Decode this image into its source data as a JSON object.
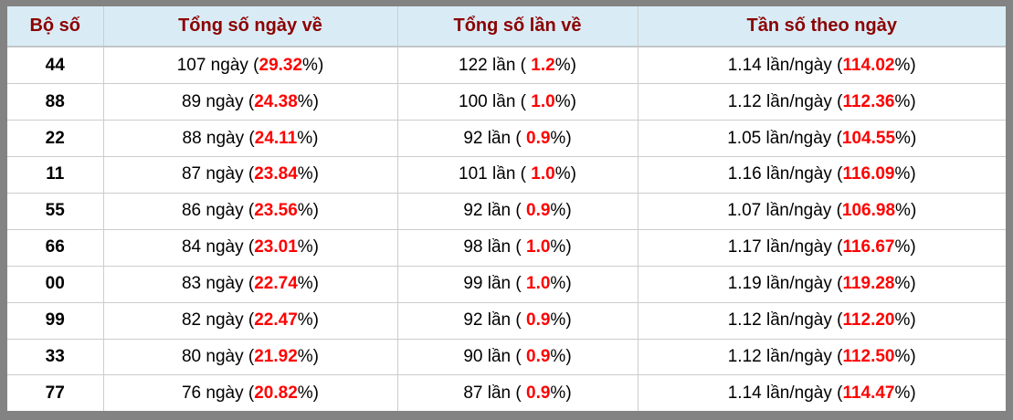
{
  "colors": {
    "frame_gray": "#838383",
    "header_bg": "#d9ecf6",
    "header_text": "#8b0000",
    "highlight_red": "#ff0000",
    "grid_line": "#cccccc"
  },
  "table": {
    "columns": [
      {
        "id": "pair",
        "label": "Bộ số"
      },
      {
        "id": "days",
        "label": "Tổng số ngày về"
      },
      {
        "id": "times",
        "label": "Tổng số lần về"
      },
      {
        "id": "freq",
        "label": "Tần số theo ngày"
      }
    ],
    "units": {
      "days": "ngày",
      "times": "lần",
      "freq": "lần/ngày"
    },
    "rows": [
      {
        "pair": "44",
        "days": "107",
        "days_pct": "29.32",
        "times": "122",
        "times_pct": "1.2",
        "freq": "1.14",
        "freq_pct": "114.02"
      },
      {
        "pair": "88",
        "days": "89",
        "days_pct": "24.38",
        "times": "100",
        "times_pct": "1.0",
        "freq": "1.12",
        "freq_pct": "112.36"
      },
      {
        "pair": "22",
        "days": "88",
        "days_pct": "24.11",
        "times": "92",
        "times_pct": "0.9",
        "freq": "1.05",
        "freq_pct": "104.55"
      },
      {
        "pair": "11",
        "days": "87",
        "days_pct": "23.84",
        "times": "101",
        "times_pct": "1.0",
        "freq": "1.16",
        "freq_pct": "116.09"
      },
      {
        "pair": "55",
        "days": "86",
        "days_pct": "23.56",
        "times": "92",
        "times_pct": "0.9",
        "freq": "1.07",
        "freq_pct": "106.98"
      },
      {
        "pair": "66",
        "days": "84",
        "days_pct": "23.01",
        "times": "98",
        "times_pct": "1.0",
        "freq": "1.17",
        "freq_pct": "116.67"
      },
      {
        "pair": "00",
        "days": "83",
        "days_pct": "22.74",
        "times": "99",
        "times_pct": "1.0",
        "freq": "1.19",
        "freq_pct": "119.28"
      },
      {
        "pair": "99",
        "days": "82",
        "days_pct": "22.47",
        "times": "92",
        "times_pct": "0.9",
        "freq": "1.12",
        "freq_pct": "112.20"
      },
      {
        "pair": "33",
        "days": "80",
        "days_pct": "21.92",
        "times": "90",
        "times_pct": "0.9",
        "freq": "1.12",
        "freq_pct": "112.50"
      },
      {
        "pair": "77",
        "days": "76",
        "days_pct": "20.82",
        "times": "87",
        "times_pct": "0.9",
        "freq": "1.14",
        "freq_pct": "114.47"
      }
    ]
  }
}
